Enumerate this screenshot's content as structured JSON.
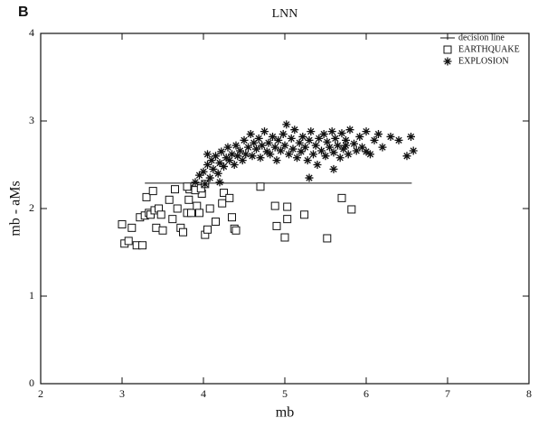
{
  "panel_label": "B",
  "chart_data": {
    "type": "scatter",
    "title": "LNN",
    "xlabel": "mb",
    "ylabel": "mb - aMs",
    "xlim": [
      2,
      8
    ],
    "ylim": [
      0,
      4
    ],
    "xticks": [
      2,
      3,
      4,
      5,
      6,
      7,
      8
    ],
    "yticks": [
      0,
      1,
      2,
      3,
      4
    ],
    "grid": false,
    "legend": "upper right",
    "series": [
      {
        "name": "decision line",
        "color": "#111111",
        "marker": "line",
        "x": [
          3.28,
          6.56
        ],
        "values": [
          2.29,
          2.29
        ]
      },
      {
        "name": "EARTHQUAKE",
        "color": "#111111",
        "marker": "square",
        "x": [
          3.0,
          3.03,
          3.08,
          3.12,
          3.18,
          3.22,
          3.25,
          3.28,
          3.33,
          3.35,
          3.3,
          3.38,
          3.4,
          3.42,
          3.45,
          3.48,
          3.5,
          3.58,
          3.62,
          3.65,
          3.68,
          3.72,
          3.75,
          3.8,
          3.82,
          3.85,
          3.83,
          3.92,
          3.95,
          3.98,
          4.02,
          4.05,
          4.08,
          4.15,
          4.23,
          4.25,
          4.32,
          4.35,
          4.38,
          4.4,
          4.7,
          4.88,
          4.9,
          5.0,
          5.03,
          5.03,
          5.24,
          5.52,
          5.7,
          5.82,
          3.8,
          3.9,
          3.97,
          4.02
        ],
        "values": [
          1.82,
          1.6,
          1.63,
          1.78,
          1.58,
          1.9,
          1.58,
          1.92,
          1.95,
          1.93,
          2.13,
          2.2,
          1.98,
          1.78,
          2.0,
          1.93,
          1.75,
          2.1,
          1.88,
          2.22,
          2.0,
          1.78,
          1.73,
          1.95,
          2.1,
          1.95,
          2.22,
          2.03,
          1.95,
          2.17,
          1.7,
          1.76,
          2.0,
          1.85,
          2.06,
          2.18,
          2.12,
          1.9,
          1.77,
          1.75,
          2.25,
          2.03,
          1.8,
          1.67,
          1.88,
          2.02,
          1.93,
          1.66,
          2.12,
          1.99,
          2.25,
          2.21,
          2.23,
          2.28
        ]
      },
      {
        "name": "EXPLOSION",
        "color": "#111111",
        "marker": "asterisk",
        "x": [
          3.9,
          3.95,
          4.0,
          4.02,
          4.05,
          4.08,
          4.1,
          4.12,
          4.15,
          4.18,
          4.2,
          4.22,
          4.25,
          4.28,
          4.3,
          4.32,
          4.35,
          4.38,
          4.4,
          4.42,
          4.45,
          4.48,
          4.5,
          4.52,
          4.55,
          4.58,
          4.6,
          4.62,
          4.65,
          4.68,
          4.7,
          4.72,
          4.75,
          4.78,
          4.8,
          4.82,
          4.85,
          4.88,
          4.9,
          4.92,
          4.95,
          4.98,
          5.0,
          5.02,
          5.05,
          5.08,
          5.1,
          5.12,
          5.15,
          5.18,
          5.2,
          5.22,
          5.25,
          5.28,
          5.3,
          5.32,
          5.35,
          5.38,
          5.4,
          5.42,
          5.45,
          5.48,
          5.5,
          5.52,
          5.55,
          5.58,
          5.6,
          5.62,
          5.65,
          5.68,
          5.7,
          5.72,
          5.75,
          5.78,
          5.8,
          5.85,
          5.88,
          5.92,
          5.95,
          6.0,
          6.05,
          6.1,
          6.15,
          6.2,
          6.3,
          6.4,
          6.5,
          6.55,
          6.58,
          5.3,
          4.2,
          4.05,
          5.6,
          6.0,
          5.75
        ],
        "values": [
          2.3,
          2.38,
          2.42,
          2.28,
          2.5,
          2.35,
          2.55,
          2.45,
          2.6,
          2.4,
          2.52,
          2.65,
          2.48,
          2.58,
          2.7,
          2.55,
          2.62,
          2.5,
          2.72,
          2.6,
          2.66,
          2.55,
          2.78,
          2.62,
          2.7,
          2.85,
          2.6,
          2.75,
          2.68,
          2.8,
          2.58,
          2.72,
          2.88,
          2.65,
          2.75,
          2.62,
          2.82,
          2.7,
          2.55,
          2.78,
          2.66,
          2.85,
          2.72,
          2.96,
          2.62,
          2.8,
          2.68,
          2.9,
          2.58,
          2.75,
          2.65,
          2.82,
          2.7,
          2.55,
          2.78,
          2.88,
          2.62,
          2.72,
          2.5,
          2.8,
          2.66,
          2.85,
          2.6,
          2.76,
          2.7,
          2.88,
          2.64,
          2.8,
          2.72,
          2.58,
          2.86,
          2.68,
          2.78,
          2.62,
          2.9,
          2.74,
          2.66,
          2.82,
          2.7,
          2.88,
          2.62,
          2.78,
          2.85,
          2.7,
          2.82,
          2.78,
          2.6,
          2.82,
          2.66,
          2.35,
          2.3,
          2.62,
          2.45,
          2.65,
          2.72
        ]
      }
    ]
  }
}
